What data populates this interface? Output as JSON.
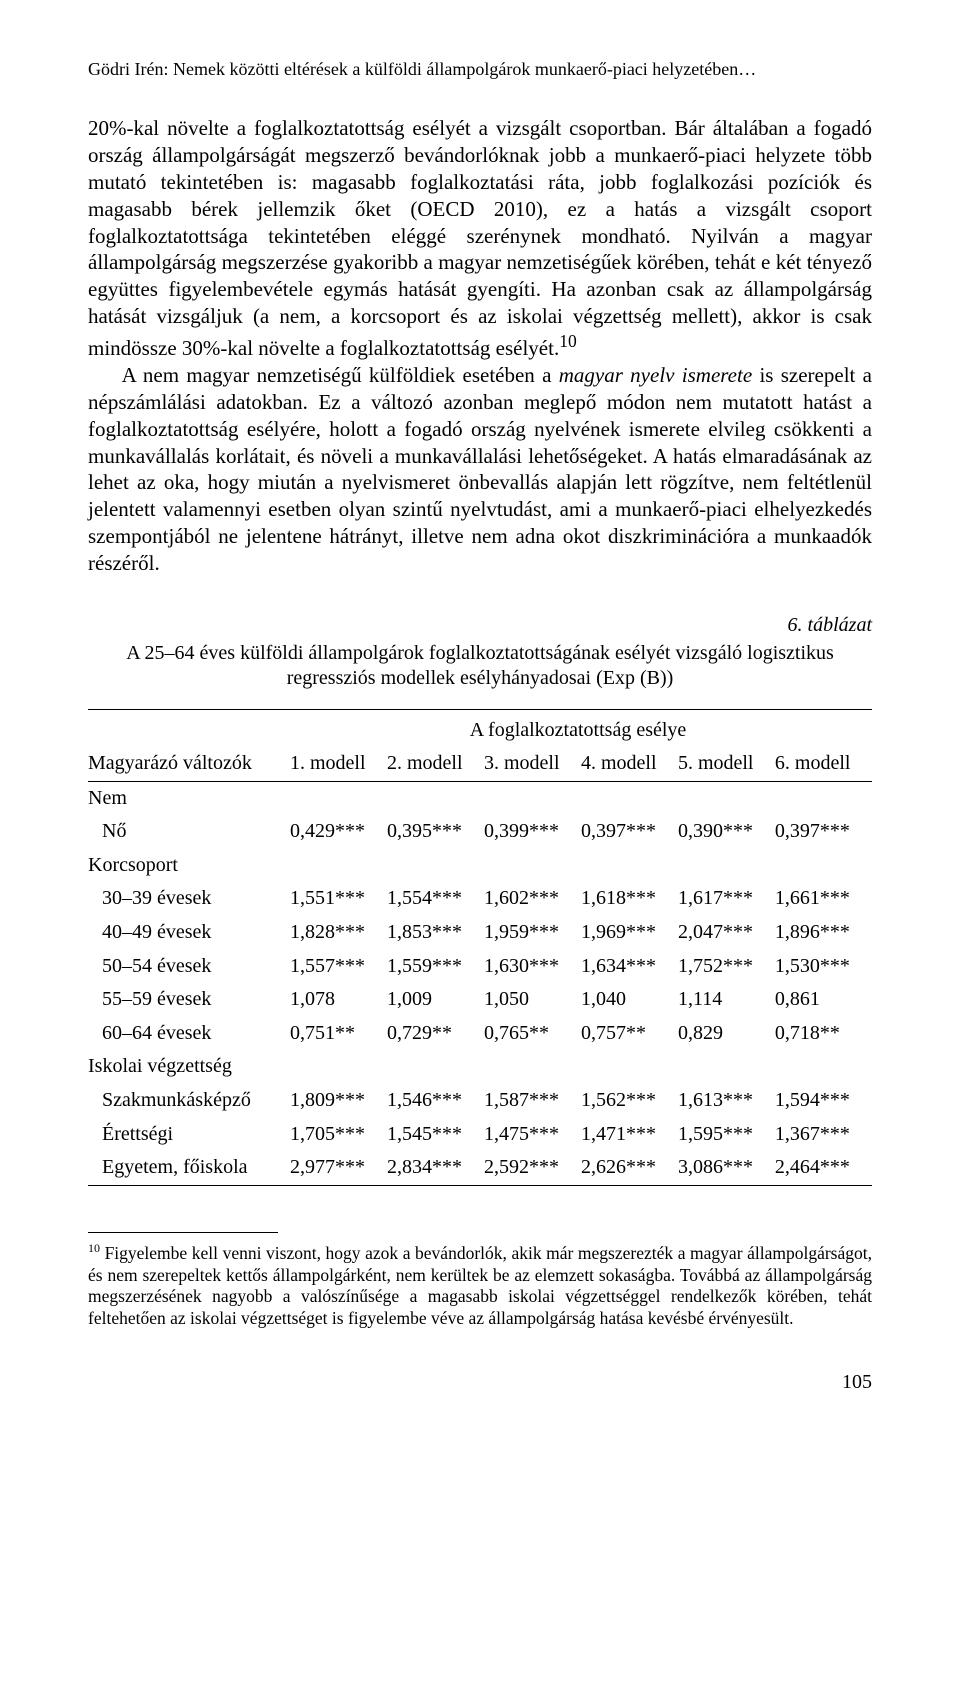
{
  "running_head": "Gödri Irén: Nemek közötti eltérések a külföldi állampolgárok munkaerő-piaci helyzetében…",
  "paragraphs": {
    "p1a": "20%-kal növelte a foglalkoztatottság esélyét a vizsgált csoportban. Bár általában a fogadó ország állampolgárságát megszerző bevándorlóknak jobb a munkaerő-piaci helyzete több mutató tekintetében is: magasabb foglalkoztatási ráta, jobb foglalkozási pozíciók és magasabb bérek jellemzik őket (OECD 2010), ez a hatás a vizsgált csoport foglalkoztatottsága tekintetében eléggé szerénynek mondható. Nyilván a magyar állampolgárság megszerzése gyakoribb a magyar nemzetiségűek körében, tehát e két tényező együttes figyelembevétele egymás hatását gyengíti. Ha azonban csak az állampolgárság hatását vizsgáljuk (a nem, a korcsoport és az iskolai végzettség mellett), akkor is csak mindössze 30%-kal növelte a foglalkoztatottság esélyét.",
    "p1_sup": "10",
    "p2a": "A nem magyar nemzetiségű külföldiek esetében a ",
    "p2_em": "magyar nyelv ismerete",
    "p2b": " is szerepelt a népszámlálási adatokban. Ez a változó azonban meglepő módon nem mutatott hatást a foglalkoztatottság esélyére, holott a fogadó ország nyelvének ismerete elvileg csökkenti a munkavállalás korlátait, és növeli a munkavállalási lehetőségeket. A hatás elmaradásának az lehet az oka, hogy miután a nyelvismeret önbevallás alapján lett rögzítve, nem feltétlenül jelentett valamennyi esetben olyan szintű nyelvtudást, ami a munkaerő-piaci elhelyezkedés szempontjából ne jelentene hátrányt, illetve nem adna okot diszkriminációra a munkaadók részéről."
  },
  "table": {
    "number": "6. táblázat",
    "caption": "A 25–64 éves külföldi állampolgárok foglalkoztatottságának esélyét vizsgáló logisztikus regressziós modellek esélyhányadosai (Exp (B))",
    "spanner": "A foglalkoztatottság esélye",
    "col0": "Magyarázó változók",
    "cols": [
      "1. modell",
      "2. modell",
      "3. modell",
      "4. modell",
      "5. modell",
      "6. modell"
    ],
    "groups": [
      {
        "label": "Nem",
        "rows": [
          {
            "label": "Nő",
            "cells": [
              "0,429***",
              "0,395***",
              "0,399***",
              "0,397***",
              "0,390***",
              "0,397***"
            ]
          }
        ]
      },
      {
        "label": "Korcsoport",
        "rows": [
          {
            "label": "30–39 évesek",
            "cells": [
              "1,551***",
              "1,554***",
              "1,602***",
              "1,618***",
              "1,617***",
              "1,661***"
            ]
          },
          {
            "label": "40–49 évesek",
            "cells": [
              "1,828***",
              "1,853***",
              "1,959***",
              "1,969***",
              "2,047***",
              "1,896***"
            ]
          },
          {
            "label": "50–54 évesek",
            "cells": [
              "1,557***",
              "1,559***",
              "1,630***",
              "1,634***",
              "1,752***",
              "1,530***"
            ]
          },
          {
            "label": "55–59 évesek",
            "cells": [
              "1,078",
              "1,009",
              "1,050",
              "1,040",
              "1,114",
              "0,861"
            ]
          },
          {
            "label": "60–64 évesek",
            "cells": [
              "0,751**",
              "0,729**",
              "0,765**",
              "0,757**",
              "0,829",
              "0,718**"
            ]
          }
        ]
      },
      {
        "label": "Iskolai végzettség",
        "rows": [
          {
            "label": "Szakmunkásképző",
            "cells": [
              "1,809***",
              "1,546***",
              "1,587***",
              "1,562***",
              "1,613***",
              "1,594***"
            ]
          },
          {
            "label": "Érettségi",
            "cells": [
              "1,705***",
              "1,545***",
              "1,475***",
              "1,471***",
              "1,595***",
              "1,367***"
            ]
          },
          {
            "label": "Egyetem, főiskola",
            "cells": [
              "2,977***",
              "2,834***",
              "2,592***",
              "2,626***",
              "3,086***",
              "2,464***"
            ]
          }
        ]
      }
    ]
  },
  "footnote": {
    "num": "10",
    "text": " Figyelembe kell venni viszont, hogy azok a bevándorlók, akik már megszerezték a magyar állampolgárságot, és nem szerepeltek kettős állampolgárként, nem kerültek be az elemzett sokaságba. Továbbá az állampolgárság megszerzésének nagyobb a valószínűsége a magasabb iskolai végzettséggel rendelkezők körében, tehát feltehetően az iskolai végzettséget is figyelembe véve az állampolgárság hatása kevésbé érvényesült."
  },
  "page_number": "105"
}
